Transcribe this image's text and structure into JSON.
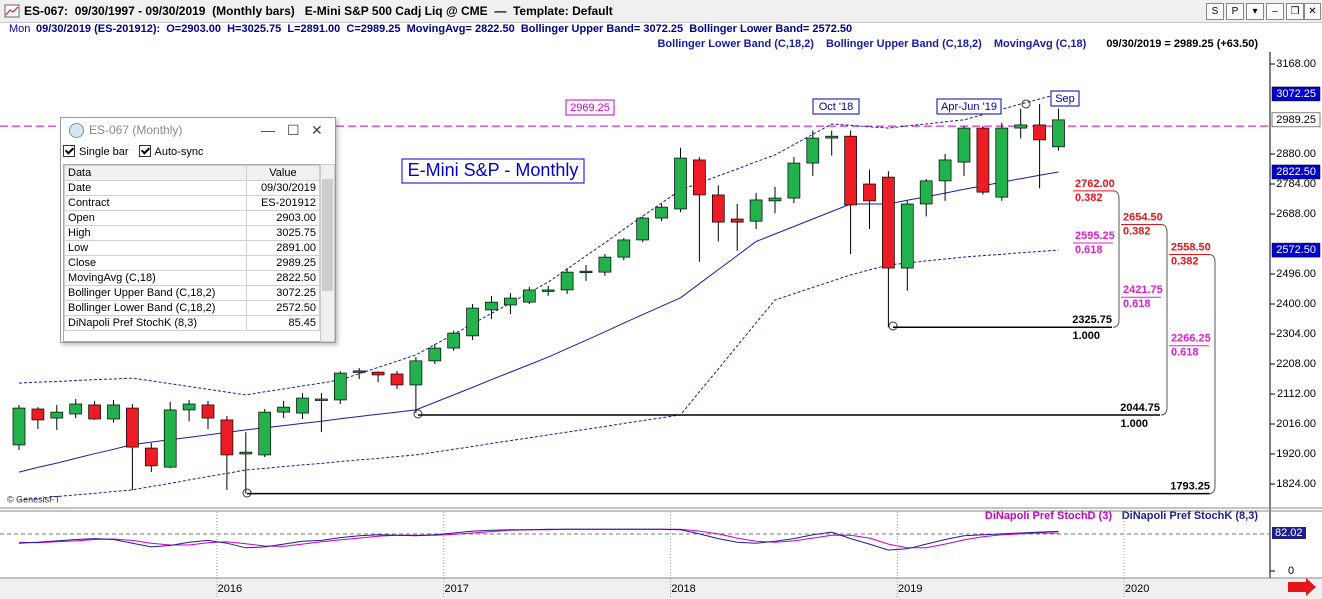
{
  "header": {
    "title": "ES-067:  09/30/1997 - 09/30/2019  (Monthly bars)   E-Mini S&P 500 Cadj Liq @ CME  —  Template: Default",
    "day": "Mon",
    "bar_info": "09/30/2019 (ES-201912):  O=2903.00  H=3025.75  L=2891.00  C=2989.25  MovingAvg= 2822.50  Bollinger Upper Band= 3072.25  Bollinger Lower Band= 2572.50",
    "last": "09/30/2019 = 2989.25 (+63.50)",
    "buttons": [
      "S",
      "P"
    ]
  },
  "data_window": {
    "title": "ES-067 (Monthly)",
    "options": [
      "Single bar",
      "Auto-sync"
    ],
    "columns": [
      "Data",
      "Value"
    ],
    "rows": [
      [
        "Date",
        "09/30/2019"
      ],
      [
        "Contract",
        "ES-201912"
      ],
      [
        "Open",
        "2903.00"
      ],
      [
        "High",
        "3025.75"
      ],
      [
        "Low",
        "2891.00"
      ],
      [
        "Close",
        "2989.25"
      ],
      [
        "MovingAvg (C,18)",
        "2822.50"
      ],
      [
        "Bollinger Upper Band (C,18,2)",
        "3072.25"
      ],
      [
        "Bollinger Lower Band (C,18,2)",
        "2572.50"
      ],
      [
        "DiNapoli Pref StochK (8,3)",
        "85.45"
      ]
    ]
  },
  "chart_data": [
    {
      "type": "candlestick",
      "title": "E-Mini S&P - Monthly",
      "copyright": "© GenesisFT",
      "up_color": "#22b14c",
      "down_color": "#ed1c24",
      "open": [
        1949,
        2064,
        2035,
        2048,
        2077,
        2032,
        2067,
        1939,
        1878,
        2061,
        2077,
        2029,
        1920,
        1917,
        2054,
        2051,
        2093,
        2093,
        2186,
        2182,
        2176,
        2141,
        2218,
        2259,
        2298,
        2381,
        2397,
        2406,
        2442,
        2445,
        2502,
        2502,
        2550,
        2605,
        2675,
        2704,
        2861,
        2749,
        2672,
        2665,
        2730,
        2739,
        2851,
        2931,
        2937,
        2784,
        2806,
        2515,
        2720,
        2794,
        2854,
        2963,
        2742,
        2963,
        2973,
        2903
      ],
      "high": [
        2077,
        2070,
        2077,
        2096,
        2090,
        2093,
        2080,
        1955,
        2087,
        2093,
        2090,
        2042,
        1990,
        2064,
        2090,
        2115,
        2115,
        2185,
        2195,
        2185,
        2186,
        2230,
        2272,
        2315,
        2400,
        2426,
        2435,
        2455,
        2458,
        2515,
        2525,
        2560,
        2611,
        2680,
        2720,
        2900,
        2870,
        2780,
        2720,
        2755,
        2775,
        2870,
        2955,
        2955,
        2955,
        2830,
        2825,
        2730,
        2800,
        2880,
        2970,
        2970,
        2980,
        3025,
        3040,
        3025.75
      ],
      "low": [
        1933,
        2000,
        1997,
        2035,
        2029,
        2020,
        1805,
        1862,
        1875,
        2025,
        2000,
        1805,
        1793.25,
        1910,
        2035,
        2032,
        1990,
        2080,
        2160,
        2150,
        2128,
        2051,
        2208,
        2250,
        2285,
        2352,
        2368,
        2400,
        2426,
        2432,
        2474,
        2490,
        2540,
        2598,
        2665,
        2694,
        2535,
        2600,
        2570,
        2640,
        2690,
        2723,
        2810,
        2875,
        2560,
        2640,
        2325.75,
        2442,
        2680,
        2730,
        2810,
        2750,
        2730,
        2930,
        2770,
        2891
      ],
      "close": [
        2067,
        2029,
        2054,
        2080,
        2032,
        2077,
        1942,
        1882,
        2061,
        2080,
        2035,
        1917,
        1926,
        2054,
        2070,
        2099,
        2096,
        2179,
        2183,
        2173,
        2141,
        2218,
        2259,
        2307,
        2387,
        2406,
        2419,
        2445,
        2445,
        2502,
        2505,
        2550,
        2605,
        2675,
        2710,
        2867,
        2749,
        2662,
        2662,
        2733,
        2739,
        2851,
        2931,
        2937,
        2717,
        2730,
        2515,
        2720,
        2794,
        2861,
        2963,
        2758,
        2963,
        2973,
        2925,
        2989.25
      ],
      "series": [
        {
          "name": "Bollinger Lower Band (C,18,2)",
          "color": "#1a1aa6",
          "dash": true,
          "values": [
            1773,
            1778,
            1784,
            1789,
            1794,
            1800,
            1805,
            1816,
            1826,
            1837,
            1848,
            1858,
            1869,
            1874,
            1880,
            1885,
            1890,
            1896,
            1901,
            1906,
            1912,
            1917,
            1926,
            1935,
            1944,
            1954,
            1963,
            1972,
            1981,
            1990,
            1999,
            2008,
            2018,
            2027,
            2036,
            2045,
            2119,
            2192,
            2266,
            2340,
            2413,
            2433,
            2453,
            2473,
            2493,
            2509,
            2525,
            2531,
            2538,
            2544,
            2550,
            2555,
            2559,
            2564,
            2568,
            2572.5
          ]
        },
        {
          "name": "Bollinger Upper Band (C,18,2)",
          "color": "#1a1aa6",
          "dash": true,
          "values": [
            2147,
            2150,
            2152,
            2155,
            2158,
            2160,
            2163,
            2154,
            2145,
            2136,
            2127,
            2118,
            2109,
            2119,
            2128,
            2138,
            2147,
            2157,
            2177,
            2197,
            2217,
            2237,
            2270,
            2303,
            2337,
            2370,
            2403,
            2437,
            2470,
            2512,
            2554,
            2596,
            2639,
            2681,
            2723,
            2765,
            2787,
            2810,
            2832,
            2855,
            2877,
            2910,
            2943,
            2976,
            2972,
            2967,
            2963,
            2970,
            2976,
            2983,
            2989,
            3006,
            3023,
            3040,
            3056,
            3072.25
          ]
        },
        {
          "name": "MovingAvg (C,18)",
          "color": "#1a1aa6",
          "dash": false,
          "values": [
            1862,
            1877,
            1891,
            1906,
            1921,
            1935,
            1950,
            1958,
            1966,
            1973,
            1981,
            1989,
            1997,
            2004,
            2011,
            2018,
            2025,
            2033,
            2040,
            2047,
            2054,
            2061,
            2085,
            2109,
            2133,
            2158,
            2182,
            2206,
            2230,
            2257,
            2284,
            2311,
            2339,
            2366,
            2393,
            2420,
            2465,
            2510,
            2555,
            2600,
            2624,
            2648,
            2672,
            2696,
            2720,
            2720,
            2720,
            2732,
            2743,
            2755,
            2767,
            2778,
            2790,
            2801,
            2812,
            2822.5
          ]
        }
      ],
      "ylim": [
        1756.8,
        3232
      ],
      "yticks": [
        {
          "value": 1824,
          "label": "1824.00"
        },
        {
          "value": 1920,
          "label": "1920.00"
        },
        {
          "value": 2016,
          "label": "2016.00"
        },
        {
          "value": 2112,
          "label": "2112.00"
        },
        {
          "value": 2208,
          "label": "2208.00"
        },
        {
          "value": 2304,
          "label": "2304.00"
        },
        {
          "value": 2400,
          "label": "2400.00"
        },
        {
          "value": 2496,
          "label": "2496.00"
        },
        {
          "value": 2688,
          "label": "2688.00"
        },
        {
          "value": 2784,
          "label": "2784.00"
        },
        {
          "value": 2880,
          "label": "2880.00"
        },
        {
          "value": 3168,
          "label": "3168.00"
        }
      ],
      "year_labels": [
        "2016",
        "2017",
        "2018",
        "2019",
        "2020"
      ],
      "ref_line": {
        "value": 2969.25,
        "label": "2969.25",
        "color": "#cc00cc"
      },
      "annotations": [
        "Oct '18",
        "Apr-Jun '19",
        "Sep"
      ],
      "price_tags": [
        {
          "value": 3072.25,
          "label": "3072.25",
          "color": "#0000cc",
          "text_color": "#ffffff"
        },
        {
          "value": 2989.25,
          "label": "2989.25",
          "color": "#ffffff",
          "text_color": "#000000"
        },
        {
          "value": 2822.5,
          "label": "2822.50",
          "color": "#0000cc",
          "text_color": "#ffffff"
        },
        {
          "value": 2572.5,
          "label": "2572.50",
          "color": "#0000cc",
          "text_color": "#ffffff"
        }
      ],
      "fib_levels": [
        {
          "value": 2325.75,
          "label": "2325.75",
          "ratio": {
            "value": 1,
            "label": "1.000"
          }
        },
        {
          "value": 2044.75,
          "label": "2044.75",
          "ratio": {
            "value": 1,
            "label": "1.000"
          }
        },
        {
          "value": 1793.25,
          "label": "1793.25"
        }
      ],
      "retracements": [
        {
          "value": 2762,
          "label": "2762.00",
          "ratio": 0.382,
          "color": "#e8141b"
        },
        {
          "value": 2595.25,
          "label": "2595.25",
          "ratio": 0.618,
          "color": "#e020d0"
        },
        {
          "value": 2654.5,
          "label": "2654.50",
          "ratio": 0.382,
          "color": "#e8141b"
        },
        {
          "value": 2421.75,
          "label": "2421.75",
          "ratio": 0.618,
          "color": "#e020d0"
        },
        {
          "value": 2558.5,
          "label": "2558.50",
          "ratio": 0.382,
          "color": "#e8141b"
        },
        {
          "value": 2266.25,
          "label": "2266.25",
          "ratio": 0.618,
          "color": "#e020d0"
        }
      ]
    },
    {
      "type": "line",
      "series": [
        {
          "name": "DiNapoli Pref StochD (3)",
          "color": "#cc00cc",
          "values": [
            62,
            61,
            63,
            65,
            68,
            69,
            66,
            60,
            56,
            56,
            61,
            63,
            59,
            54,
            53,
            58,
            63,
            67,
            71,
            75,
            77,
            77,
            77,
            79,
            82,
            85,
            88,
            89,
            89,
            90,
            90,
            90,
            90,
            90,
            90,
            90,
            86,
            80,
            71,
            64,
            62,
            65,
            71,
            77,
            77,
            71,
            58,
            50,
            50,
            58,
            67,
            74,
            78,
            80,
            82,
            82.02
          ]
        },
        {
          "name": "DiNapoli Pref StochK (8,3)",
          "color": "#1f1f8f",
          "values": [
            60,
            62,
            65,
            68,
            70,
            68,
            60,
            52,
            55,
            62,
            66,
            60,
            50,
            52,
            58,
            64,
            66,
            72,
            76,
            78,
            77,
            76,
            78,
            82,
            86,
            88,
            89,
            89,
            90,
            90,
            90,
            90,
            90,
            90,
            90,
            89,
            80,
            70,
            62,
            60,
            64,
            70,
            78,
            84,
            70,
            58,
            45,
            48,
            58,
            68,
            76,
            78,
            80,
            82,
            84,
            85.45
          ]
        }
      ],
      "ylim": [
        -15.1,
        127.3
      ],
      "yticks": [
        0
      ],
      "last_tag": {
        "value": 82.02,
        "label": "82.02"
      }
    }
  ]
}
